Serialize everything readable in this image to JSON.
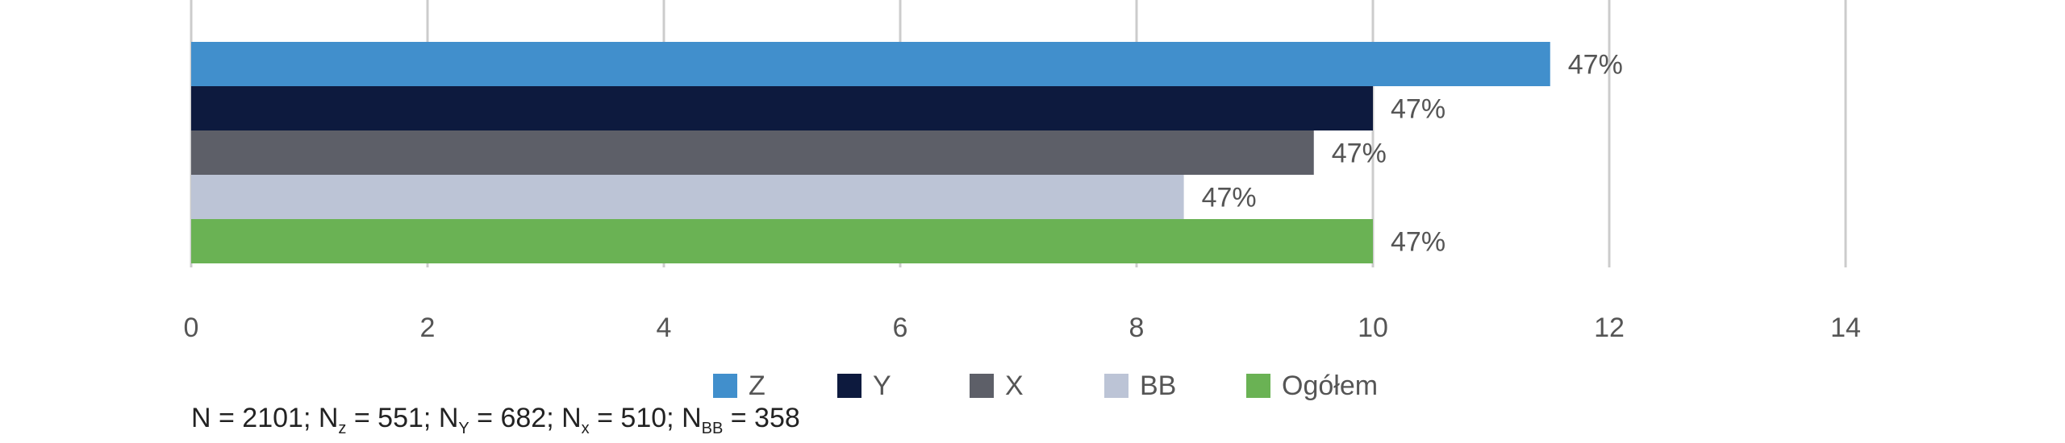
{
  "chart_data": {
    "type": "bar",
    "orientation": "horizontal",
    "series": [
      {
        "name": "Z",
        "value": 11.5,
        "label": "47%",
        "color": "#418FCC"
      },
      {
        "name": "Y",
        "value": 10.0,
        "label": "47%",
        "color": "#0D1A3E"
      },
      {
        "name": "X",
        "value": 9.5,
        "label": "47%",
        "color": "#5D5F68"
      },
      {
        "name": "BB",
        "value": 8.4,
        "label": "47%",
        "color": "#BCC4D6"
      },
      {
        "name": "Ogółem",
        "value": 10.0,
        "label": "47%",
        "color": "#6AB254"
      }
    ],
    "x_ticks": [
      "0",
      "2",
      "4",
      "6",
      "8",
      "10",
      "12",
      "14"
    ],
    "xlim": [
      0,
      14
    ],
    "grid": "vertical",
    "legend_position": "bottom",
    "title": "",
    "xlabel": "",
    "ylabel": ""
  },
  "footnote": {
    "n_label": "N",
    "n_value": "2101",
    "items": [
      {
        "sub": "z",
        "value": "551"
      },
      {
        "sub": "Y",
        "value": "682"
      },
      {
        "sub": "x",
        "value": "510"
      },
      {
        "sub": "BB",
        "value": "358"
      }
    ]
  }
}
